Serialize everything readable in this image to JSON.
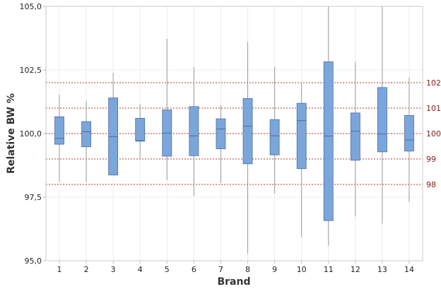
{
  "chart_data": {
    "type": "boxplot",
    "title": "",
    "xlabel": "Brand",
    "ylabel": "Relative BW %",
    "ylim": [
      95,
      105
    ],
    "y_ticks": [
      "95,0",
      "97,5",
      "100,0",
      "102,5",
      "105,0"
    ],
    "y_tick_values": [
      95,
      97.5,
      100,
      102.5,
      105
    ],
    "reference_lines": [
      {
        "value": 98,
        "label": "98"
      },
      {
        "value": 99,
        "label": "99"
      },
      {
        "value": 100,
        "label": "100"
      },
      {
        "value": 101,
        "label": "101"
      },
      {
        "value": 102,
        "label": "102"
      }
    ],
    "categories": [
      "1",
      "2",
      "3",
      "4",
      "5",
      "6",
      "7",
      "8",
      "9",
      "10",
      "11",
      "12",
      "13",
      "14"
    ],
    "boxes": [
      {
        "min": 98.09,
        "q1": 99.58,
        "median": 99.81,
        "q3": 100.66,
        "max": 101.52
      },
      {
        "min": 98.09,
        "q1": 99.48,
        "median": 100.07,
        "q3": 100.47,
        "max": 101.27
      },
      {
        "min": 98.37,
        "q1": 98.37,
        "median": 99.88,
        "q3": 101.4,
        "max": 102.39
      },
      {
        "min": 98.98,
        "q1": 99.7,
        "median": 99.72,
        "q3": 100.6,
        "max": 101.15
      },
      {
        "min": 98.17,
        "q1": 99.11,
        "median": 100.02,
        "q3": 100.93,
        "max": 103.72
      },
      {
        "min": 97.53,
        "q1": 99.13,
        "median": 99.91,
        "q3": 101.06,
        "max": 102.61
      },
      {
        "min": 98.06,
        "q1": 99.4,
        "median": 100.18,
        "q3": 100.58,
        "max": 101.11
      },
      {
        "min": 95.28,
        "q1": 98.81,
        "median": 100.29,
        "q3": 101.38,
        "max": 103.6
      },
      {
        "min": 97.64,
        "q1": 99.16,
        "median": 99.91,
        "q3": 100.55,
        "max": 102.62
      },
      {
        "min": 95.93,
        "q1": 98.62,
        "median": 100.51,
        "q3": 101.19,
        "max": 101.97
      },
      {
        "min": 95.59,
        "q1": 96.58,
        "median": 99.9,
        "q3": 102.82,
        "max": 105.0
      },
      {
        "min": 96.74,
        "q1": 98.95,
        "median": 100.09,
        "q3": 100.81,
        "max": 102.82
      },
      {
        "min": 96.46,
        "q1": 99.28,
        "median": 99.98,
        "q3": 101.81,
        "max": 105.0
      },
      {
        "min": 97.31,
        "q1": 99.31,
        "median": 99.75,
        "q3": 100.71,
        "max": 102.2
      }
    ],
    "grid": true,
    "colors": {
      "box_fill": "#7ba6dc",
      "box_stroke": "#4a6d9c",
      "whisker": "#999999",
      "reference": "#c0392b",
      "reference_label": "#8b1a1a"
    }
  }
}
